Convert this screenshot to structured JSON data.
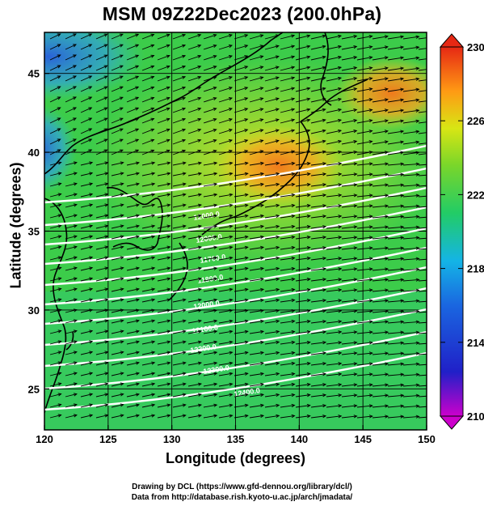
{
  "title": "MSM 09Z22Dec2023 (200.0hPa)",
  "xlabel": "Longitude (degrees)",
  "ylabel": "Latitude  (degrees)",
  "credits": [
    "Drawing by DCL (https://www.gfd-dennou.org/library/dcl/)",
    "Data from http://database.rish.kyoto-u.ac.jp/arch/jmadata/"
  ],
  "chart_data": {
    "type": "heatmap",
    "xlim": [
      120,
      150
    ],
    "ylim": [
      22.4,
      47.6
    ],
    "x_ticks": [
      "120",
      "125",
      "130",
      "135",
      "140",
      "145",
      "150"
    ],
    "y_ticks": [
      "25",
      "30",
      "35",
      "40",
      "45"
    ],
    "colorbar": {
      "range": [
        210,
        230
      ],
      "ticks": [
        "210",
        "214",
        "218",
        "222",
        "226",
        "230"
      ],
      "colors": [
        "#cc00cc",
        "#1a3fcc",
        "#14b4ff",
        "#22cc55",
        "#b4e61e",
        "#ff9a14",
        "#e62814"
      ]
    },
    "contour_labels": [
      "12000.0",
      "12000.0",
      "11700.0",
      "11800.0",
      "12000.0",
      "12100.0",
      "12200.0",
      "12300.0",
      "12400.0"
    ],
    "grid": true
  }
}
